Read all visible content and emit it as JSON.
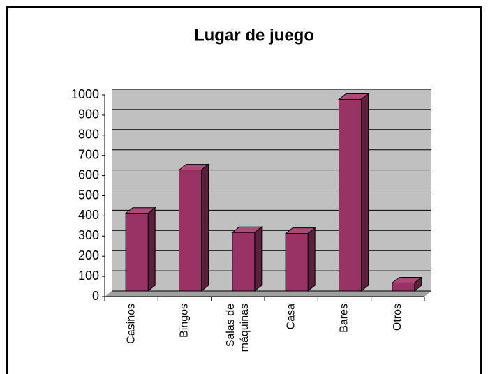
{
  "chart_data": {
    "type": "bar3d",
    "title": "Lugar de juego",
    "categories": [
      "Casinos",
      "Bingos",
      "Salas de máquinas",
      "Casa",
      "Bares",
      "Otros"
    ],
    "values": [
      385,
      600,
      290,
      285,
      950,
      40
    ],
    "color": "#993366",
    "ylim": [
      0,
      1000
    ],
    "yticks": [
      0,
      100,
      200,
      300,
      400,
      500,
      600,
      700,
      800,
      900,
      1000
    ],
    "grid": true
  }
}
